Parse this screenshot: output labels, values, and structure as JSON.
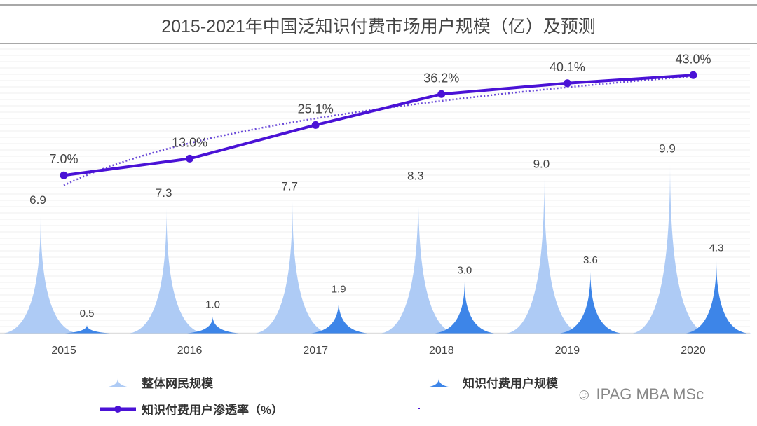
{
  "chart_data": {
    "type": "bar+line",
    "title": "2015-2021年中国泛知识付费市场用户规模（亿）及预测",
    "categories": [
      "2015",
      "2016",
      "2017",
      "2018",
      "2019",
      "2020"
    ],
    "series": [
      {
        "name": "整体网民规模",
        "type": "spike-bar",
        "values": [
          6.9,
          7.3,
          7.7,
          8.3,
          9.0,
          9.9
        ],
        "color": "#aecbf5"
      },
      {
        "name": "知识付费用户规模",
        "type": "spike-bar",
        "values": [
          0.5,
          1.0,
          1.9,
          3.0,
          3.6,
          4.3
        ],
        "color": "#3d85e8"
      },
      {
        "name": "知识付费用户渗透率（%）",
        "type": "line",
        "values": [
          7.0,
          13.0,
          25.1,
          36.2,
          40.1,
          43.0
        ],
        "labels": [
          "7.0%",
          "13.0%",
          "25.1%",
          "36.2%",
          "40.1%",
          "43.0%"
        ],
        "color": "#4a12d6",
        "trendline": "dotted-logarithmic"
      }
    ],
    "grid": true,
    "legend": "bottom"
  },
  "watermark": "IPAG MBA MSc"
}
